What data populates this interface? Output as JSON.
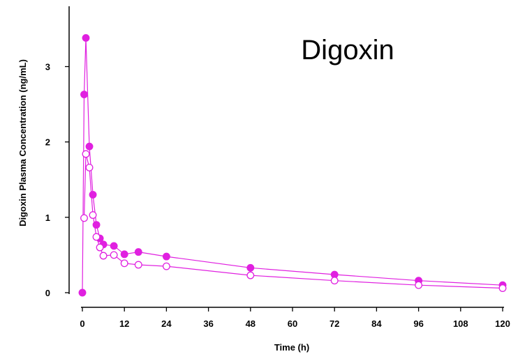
{
  "chart_data": {
    "type": "line",
    "title": "Digoxin",
    "xlabel": "Time (h)",
    "ylabel": "Digoxin Plasma Concentration (ng/mL)",
    "xlim": [
      0,
      120
    ],
    "ylim": [
      0,
      3.8
    ],
    "xticks": [
      0,
      12,
      24,
      36,
      48,
      60,
      72,
      84,
      96,
      108,
      120
    ],
    "yticks": [
      0,
      1,
      2,
      3
    ],
    "grid": false,
    "legend": "none",
    "color": "#e020e0",
    "series": [
      {
        "marker": "filled-circle",
        "x": [
          0,
          0.5,
          1,
          2,
          3,
          4,
          5,
          6,
          9,
          12,
          16,
          24,
          48,
          72,
          96,
          120
        ],
        "y": [
          0,
          2.63,
          3.38,
          1.94,
          1.3,
          0.9,
          0.72,
          0.64,
          0.62,
          0.51,
          0.54,
          0.48,
          0.33,
          0.24,
          0.16,
          0.1
        ]
      },
      {
        "marker": "open-circle",
        "x": [
          0.5,
          1,
          2,
          3,
          4,
          5,
          6,
          9,
          12,
          16,
          24,
          48,
          72,
          96,
          120
        ],
        "y": [
          0.99,
          1.84,
          1.66,
          1.03,
          0.74,
          0.6,
          0.49,
          0.5,
          0.39,
          0.37,
          0.35,
          0.23,
          0.16,
          0.1,
          0.06
        ]
      }
    ]
  }
}
